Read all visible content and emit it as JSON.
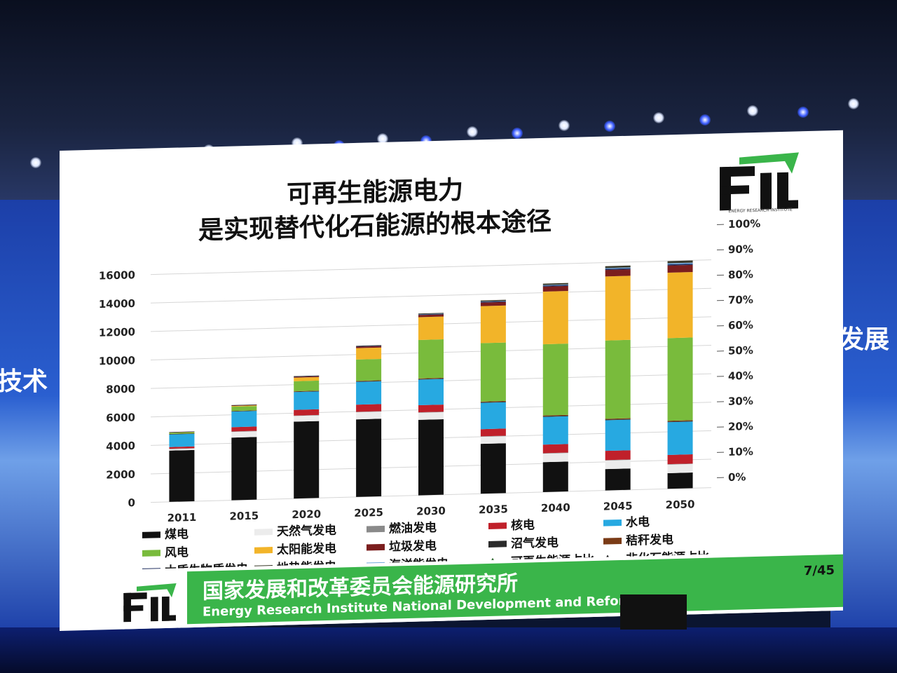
{
  "slide": {
    "title_line1": "可再生能源电力",
    "title_line2": "是实现替代化石能源的根本途径",
    "logo_caption": "ENERGY RESEARCH INSTITUTE",
    "footer_title": "国家发展和改革委员会能源研究所",
    "footer_subtitle": "Energy Research Institute National Development and Reform C",
    "page_number": "7/45"
  },
  "stage": {
    "left_text": "技术",
    "right_text": "发展"
  },
  "colors": {
    "slide_bg": "#ffffff",
    "footer_green": "#3ab54a",
    "stage_blue": "#1c3fa8"
  },
  "chart_data": {
    "type": "bar",
    "stacked": true,
    "categories": [
      "2011",
      "2015",
      "2020",
      "2025",
      "2030",
      "2035",
      "2040",
      "2045",
      "2050"
    ],
    "ylim": [
      0,
      16000
    ],
    "yticks": [
      "0",
      "2000",
      "4000",
      "6000",
      "8000",
      "10000",
      "12000",
      "14000",
      "16000"
    ],
    "y2lim": [
      0,
      100
    ],
    "y2ticks": [
      "0%",
      "10%",
      "20%",
      "30%",
      "40%",
      "50%",
      "60%",
      "70%",
      "80%",
      "90%",
      "100%"
    ],
    "grid": true,
    "legend_position": "bottom",
    "series": [
      {
        "name": "煤电",
        "color": "#111111",
        "values": [
          3600,
          4400,
          5400,
          5450,
          5300,
          3500,
          2100,
          1500,
          1100
        ]
      },
      {
        "name": "天然气发电",
        "color": "#ececec",
        "values": [
          100,
          400,
          400,
          500,
          500,
          500,
          600,
          600,
          600
        ]
      },
      {
        "name": "燃油发电",
        "color": "#8a8a8a",
        "values": [
          30,
          30,
          30,
          30,
          30,
          30,
          30,
          30,
          30
        ]
      },
      {
        "name": "核电",
        "color": "#c0202a",
        "values": [
          120,
          300,
          400,
          500,
          500,
          500,
          600,
          650,
          650
        ]
      },
      {
        "name": "水电",
        "color": "#27a9e1",
        "values": [
          900,
          1100,
          1250,
          1600,
          1800,
          1850,
          1950,
          2150,
          2300
        ]
      },
      {
        "name": "沼气发电",
        "color": "#2a2a2a",
        "values": [
          10,
          20,
          30,
          30,
          30,
          40,
          40,
          40,
          40
        ]
      },
      {
        "name": "秸秆发电",
        "color": "#7a3b16",
        "values": [
          10,
          20,
          30,
          40,
          50,
          50,
          60,
          60,
          60
        ]
      },
      {
        "name": "风电",
        "color": "#79bb3c",
        "values": [
          100,
          300,
          700,
          1500,
          2700,
          4100,
          5000,
          5500,
          5800
        ]
      },
      {
        "name": "太阳能发电",
        "color": "#f2b429",
        "values": [
          10,
          50,
          250,
          800,
          1600,
          2600,
          3700,
          4500,
          4600
        ]
      },
      {
        "name": "垃圾发电",
        "color": "#7b1e1e",
        "values": [
          10,
          30,
          60,
          100,
          150,
          250,
          350,
          450,
          500
        ]
      },
      {
        "name": "木质生物质发电",
        "color": "#1b2a5c",
        "values": [
          10,
          20,
          30,
          40,
          50,
          60,
          70,
          80,
          80
        ]
      },
      {
        "name": "海洋能发电",
        "color": "#6fa8dc",
        "values": [
          0,
          0,
          0,
          0,
          10,
          20,
          40,
          60,
          80
        ]
      },
      {
        "name": "地热能发电",
        "color": "#3a3a2a",
        "values": [
          0,
          10,
          20,
          30,
          50,
          70,
          100,
          130,
          150
        ]
      }
    ],
    "line_legend": [
      {
        "name": "可再生能源占比",
        "color": "#3ab54a",
        "marker_color": "#1f5e1f"
      },
      {
        "name": "非化石能源占比",
        "color": "#d0202a",
        "marker_color": "#111111"
      }
    ]
  }
}
